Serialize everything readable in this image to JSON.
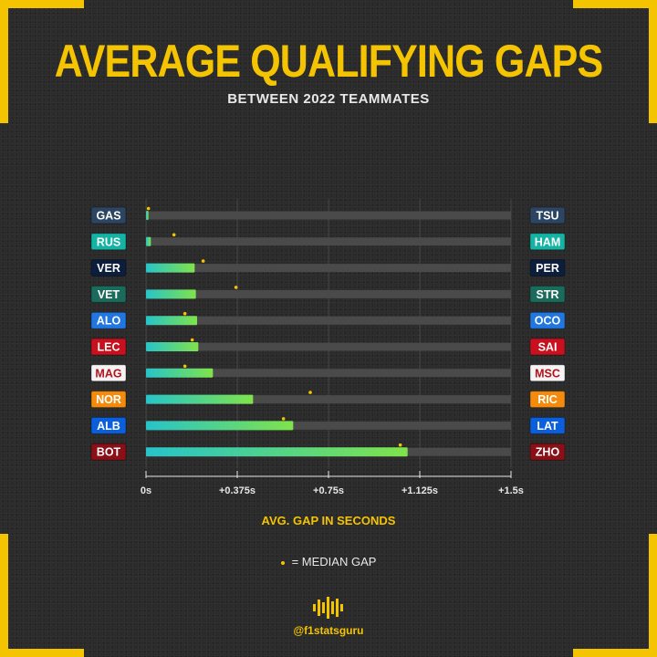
{
  "title": "AVERAGE QUALIFYING GAPS",
  "subtitle": "BETWEEN 2022 TEAMMATES",
  "axis_title": "AVG. GAP IN SECONDS",
  "legend_label": "= MEDIAN GAP",
  "handle": "@f1statsguru",
  "colors": {
    "accent": "#f5c400",
    "bar_start": "#27c4c9",
    "bar_end": "#7fe34a",
    "track": "#4a4a4a",
    "median_dot": "#f5c400"
  },
  "chart_data": {
    "type": "bar",
    "orientation": "horizontal",
    "title": "AVERAGE QUALIFYING GAPS",
    "subtitle": "BETWEEN 2022 TEAMMATES",
    "xlabel": "AVG. GAP IN SECONDS",
    "xlim": [
      0,
      1.5
    ],
    "ticks": [
      0,
      0.375,
      0.75,
      1.125,
      1.5
    ],
    "tick_labels": [
      "0s",
      "+0.375s",
      "+0.75s",
      "+1.125s",
      "+1.5s"
    ],
    "rows": [
      {
        "left": "GAS",
        "right": "TSU",
        "left_color": "#2b4562",
        "right_color": "#2b4562",
        "left_text": "#ffffff",
        "right_text": "#ffffff",
        "avg": 0.01,
        "median": 0.01
      },
      {
        "left": "RUS",
        "right": "HAM",
        "left_color": "#14b3a3",
        "right_color": "#14b3a3",
        "left_text": "#ffffff",
        "right_text": "#ffffff",
        "avg": 0.02,
        "median": 0.115
      },
      {
        "left": "VER",
        "right": "PER",
        "left_color": "#0c1e3c",
        "right_color": "#0c1e3c",
        "left_text": "#ffffff",
        "right_text": "#ffffff",
        "avg": 0.2,
        "median": 0.235
      },
      {
        "left": "VET",
        "right": "STR",
        "left_color": "#1a6b5c",
        "right_color": "#1a6b5c",
        "left_text": "#ffffff",
        "right_text": "#ffffff",
        "avg": 0.205,
        "median": 0.37
      },
      {
        "left": "ALO",
        "right": "OCO",
        "left_color": "#2176e0",
        "right_color": "#2176e0",
        "left_text": "#ffffff",
        "right_text": "#ffffff",
        "avg": 0.21,
        "median": 0.16
      },
      {
        "left": "LEC",
        "right": "SAI",
        "left_color": "#c8101e",
        "right_color": "#c8101e",
        "left_text": "#ffffff",
        "right_text": "#ffffff",
        "avg": 0.215,
        "median": 0.19
      },
      {
        "left": "MAG",
        "right": "MSC",
        "left_color": "#f4f4f4",
        "right_color": "#f4f4f4",
        "left_text": "#b3121c",
        "right_text": "#b3121c",
        "avg": 0.275,
        "median": 0.16
      },
      {
        "left": "NOR",
        "right": "RIC",
        "left_color": "#f48b0c",
        "right_color": "#f48b0c",
        "left_text": "#ffffff",
        "right_text": "#ffffff",
        "avg": 0.44,
        "median": 0.675
      },
      {
        "left": "ALB",
        "right": "LAT",
        "left_color": "#0b5fdc",
        "right_color": "#0b5fdc",
        "left_text": "#ffffff",
        "right_text": "#ffffff",
        "avg": 0.605,
        "median": 0.565
      },
      {
        "left": "BOT",
        "right": "ZHO",
        "left_color": "#8a0f16",
        "right_color": "#8a0f16",
        "left_text": "#ffffff",
        "right_text": "#ffffff",
        "avg": 1.075,
        "median": 1.045
      }
    ]
  }
}
